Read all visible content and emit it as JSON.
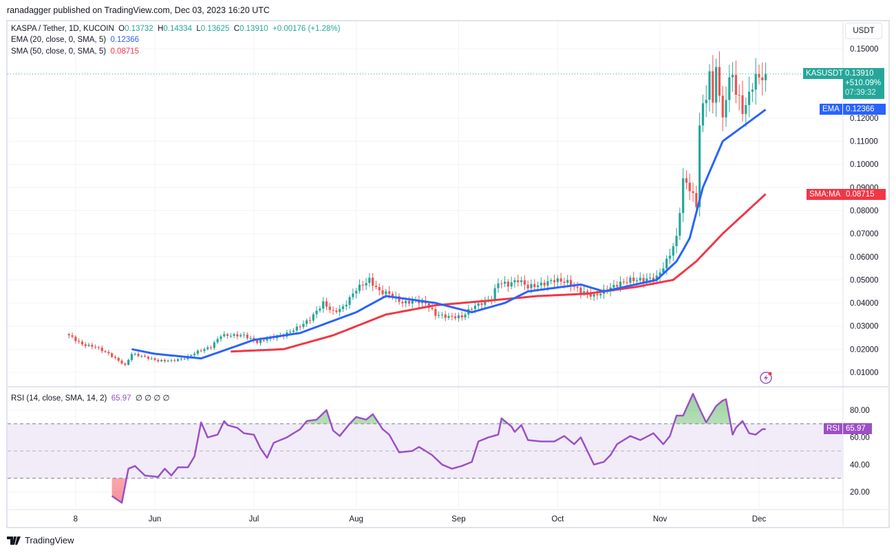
{
  "publisher": "ranadagger published on TradingView.com, Dec 03, 2023 16:20 UTC",
  "legend": {
    "symbol": "KASPA / Tether, 1D, KUCOIN",
    "o_label": "O",
    "o": "0.13732",
    "h_label": "H",
    "h": "0.14334",
    "l_label": "L",
    "l": "0.13625",
    "c_label": "C",
    "c": "0.13910",
    "change": "+0.00176 (+1.28%)",
    "ema_label": "EMA (20, close, 0, SMA, 5)",
    "ema_value": "0.12366",
    "sma_label": "SMA (50, close, 0, SMA, 5)",
    "sma_value": "0.08715",
    "rsi_label": "RSI (14, close, SMA, 14, 2)",
    "rsi_value": "65.97",
    "rsi_extra": "∅ ∅ ∅ ∅"
  },
  "currency_button": "USDT",
  "tags": {
    "symbol": "KASUSDT",
    "price": "0.13910",
    "change_pct": "+510.09%",
    "countdown": "07:39:32",
    "ema": "EMA",
    "ema_value": "0.12366",
    "sma": "SMA:MA",
    "sma_value": "0.08715",
    "rsi": "RSI",
    "rsi_value": "65.97"
  },
  "branding": "TradingView",
  "colors": {
    "up": "#26a69a",
    "down": "#ef5350",
    "ema": "#2962ff",
    "sma": "#f23645",
    "rsi": "#9c4fc7",
    "band": "#ede7f6"
  },
  "icons": {
    "lightning": "lightning-alert-icon",
    "logo": "tradingview-logo-icon"
  },
  "chart_data": [
    {
      "type": "candlestick",
      "price_ticks": [
        "0.15000",
        "0.12000",
        "0.11000",
        "0.10000",
        "0.09000",
        "0.08000",
        "0.07000",
        "0.06000",
        "0.05000",
        "0.04000",
        "0.03000",
        "0.02000",
        "0.01000"
      ],
      "ylim": [
        0.01,
        0.15
      ],
      "x_ticks": [
        [
          "2023-05-08",
          "8"
        ],
        [
          "2023-06-01",
          "Jun"
        ],
        [
          "2023-07-01",
          "Jul"
        ],
        [
          "2023-08-01",
          "Aug"
        ],
        [
          "2023-09-01",
          "Sep"
        ],
        [
          "2023-10-01",
          "Oct"
        ],
        [
          "2023-11-01",
          "Nov"
        ],
        [
          "2023-12-01",
          "Dec"
        ]
      ],
      "last_close": 0.1391,
      "close": [
        [
          "2023-05-06",
          0.026
        ],
        [
          "2023-05-10",
          0.022
        ],
        [
          "2023-05-14",
          0.021
        ],
        [
          "2023-05-18",
          0.018
        ],
        [
          "2023-05-21",
          0.015
        ],
        [
          "2023-05-23",
          0.013
        ],
        [
          "2023-05-25",
          0.018
        ],
        [
          "2023-05-28",
          0.017
        ],
        [
          "2023-06-02",
          0.015
        ],
        [
          "2023-06-06",
          0.015
        ],
        [
          "2023-06-10",
          0.016
        ],
        [
          "2023-06-14",
          0.019
        ],
        [
          "2023-06-18",
          0.021
        ],
        [
          "2023-06-21",
          0.026
        ],
        [
          "2023-06-24",
          0.026
        ],
        [
          "2023-06-28",
          0.026
        ],
        [
          "2023-07-02",
          0.023
        ],
        [
          "2023-07-06",
          0.025
        ],
        [
          "2023-07-10",
          0.026
        ],
        [
          "2023-07-15",
          0.03
        ],
        [
          "2023-07-18",
          0.033
        ],
        [
          "2023-07-22",
          0.04
        ],
        [
          "2023-07-25",
          0.036
        ],
        [
          "2023-07-28",
          0.038
        ],
        [
          "2023-08-01",
          0.046
        ],
        [
          "2023-08-05",
          0.05
        ],
        [
          "2023-08-08",
          0.045
        ],
        [
          "2023-08-11",
          0.044
        ],
        [
          "2023-08-15",
          0.04
        ],
        [
          "2023-08-19",
          0.041
        ],
        [
          "2023-08-22",
          0.04
        ],
        [
          "2023-08-25",
          0.035
        ],
        [
          "2023-08-29",
          0.034
        ],
        [
          "2023-09-02",
          0.034
        ],
        [
          "2023-09-05",
          0.038
        ],
        [
          "2023-09-08",
          0.04
        ],
        [
          "2023-09-11",
          0.042
        ],
        [
          "2023-09-13",
          0.049
        ],
        [
          "2023-09-16",
          0.048
        ],
        [
          "2023-09-19",
          0.05
        ],
        [
          "2023-09-22",
          0.047
        ],
        [
          "2023-09-26",
          0.048
        ],
        [
          "2023-09-30",
          0.05
        ],
        [
          "2023-10-04",
          0.049
        ],
        [
          "2023-10-08",
          0.045
        ],
        [
          "2023-10-12",
          0.043
        ],
        [
          "2023-10-15",
          0.045
        ],
        [
          "2023-10-19",
          0.048
        ],
        [
          "2023-10-23",
          0.05
        ],
        [
          "2023-10-27",
          0.05
        ],
        [
          "2023-10-31",
          0.051
        ],
        [
          "2023-11-03",
          0.058
        ],
        [
          "2023-11-06",
          0.068
        ],
        [
          "2023-11-08",
          0.093
        ],
        [
          "2023-11-10",
          0.09
        ],
        [
          "2023-11-12",
          0.082
        ],
        [
          "2023-11-13",
          0.118
        ],
        [
          "2023-11-15",
          0.13
        ],
        [
          "2023-11-16",
          0.14
        ],
        [
          "2023-11-17",
          0.125
        ],
        [
          "2023-11-18",
          0.145
        ],
        [
          "2023-11-19",
          0.128
        ],
        [
          "2023-11-20",
          0.12
        ],
        [
          "2023-11-21",
          0.13
        ],
        [
          "2023-11-23",
          0.14
        ],
        [
          "2023-11-24",
          0.131
        ],
        [
          "2023-11-26",
          0.124
        ],
        [
          "2023-11-27",
          0.125
        ],
        [
          "2023-11-29",
          0.135
        ],
        [
          "2023-11-30",
          0.137
        ],
        [
          "2023-12-03",
          0.1391
        ]
      ],
      "ema20": [
        [
          "2023-05-25",
          0.02
        ],
        [
          "2023-06-01",
          0.018
        ],
        [
          "2023-06-15",
          0.016
        ],
        [
          "2023-07-01",
          0.024
        ],
        [
          "2023-07-15",
          0.027
        ],
        [
          "2023-08-01",
          0.036
        ],
        [
          "2023-08-10",
          0.043
        ],
        [
          "2023-08-25",
          0.04
        ],
        [
          "2023-09-05",
          0.036
        ],
        [
          "2023-09-15",
          0.04
        ],
        [
          "2023-09-22",
          0.045
        ],
        [
          "2023-10-08",
          0.048
        ],
        [
          "2023-10-15",
          0.045
        ],
        [
          "2023-10-31",
          0.05
        ],
        [
          "2023-11-06",
          0.058
        ],
        [
          "2023-11-10",
          0.068
        ],
        [
          "2023-11-14",
          0.09
        ],
        [
          "2023-11-20",
          0.11
        ],
        [
          "2023-12-03",
          0.12366
        ]
      ],
      "sma50": [
        [
          "2023-06-24",
          0.019
        ],
        [
          "2023-07-10",
          0.02
        ],
        [
          "2023-07-25",
          0.026
        ],
        [
          "2023-08-10",
          0.035
        ],
        [
          "2023-08-25",
          0.039
        ],
        [
          "2023-09-10",
          0.041
        ],
        [
          "2023-09-25",
          0.043
        ],
        [
          "2023-10-10",
          0.044
        ],
        [
          "2023-10-25",
          0.047
        ],
        [
          "2023-11-05",
          0.05
        ],
        [
          "2023-11-12",
          0.058
        ],
        [
          "2023-11-20",
          0.07
        ],
        [
          "2023-12-03",
          0.08715
        ]
      ]
    },
    {
      "type": "line",
      "name": "RSI",
      "y_ticks": [
        "80.00",
        "60.00",
        "40.00",
        "20.00"
      ],
      "ylim": [
        5,
        98
      ],
      "bands": [
        30,
        50,
        70
      ],
      "values": [
        [
          "2023-05-19",
          17
        ],
        [
          "2023-05-22",
          12
        ],
        [
          "2023-05-24",
          37
        ],
        [
          "2023-05-26",
          39
        ],
        [
          "2023-05-29",
          32
        ],
        [
          "2023-06-02",
          31
        ],
        [
          "2023-06-04",
          37
        ],
        [
          "2023-06-06",
          32
        ],
        [
          "2023-06-08",
          38
        ],
        [
          "2023-06-11",
          38
        ],
        [
          "2023-06-13",
          46
        ],
        [
          "2023-06-15",
          71
        ],
        [
          "2023-06-17",
          60
        ],
        [
          "2023-06-20",
          62
        ],
        [
          "2023-06-22",
          72
        ],
        [
          "2023-06-23",
          69
        ],
        [
          "2023-06-26",
          67
        ],
        [
          "2023-06-28",
          63
        ],
        [
          "2023-07-01",
          62
        ],
        [
          "2023-07-03",
          52
        ],
        [
          "2023-07-05",
          45
        ],
        [
          "2023-07-07",
          56
        ],
        [
          "2023-07-11",
          60
        ],
        [
          "2023-07-15",
          66
        ],
        [
          "2023-07-17",
          72
        ],
        [
          "2023-07-20",
          73
        ],
        [
          "2023-07-23",
          80
        ],
        [
          "2023-07-25",
          65
        ],
        [
          "2023-07-27",
          61
        ],
        [
          "2023-07-30",
          70
        ],
        [
          "2023-08-01",
          75
        ],
        [
          "2023-08-04",
          73
        ],
        [
          "2023-08-06",
          77
        ],
        [
          "2023-08-09",
          66
        ],
        [
          "2023-08-11",
          62
        ],
        [
          "2023-08-14",
          49
        ],
        [
          "2023-08-18",
          50
        ],
        [
          "2023-08-20",
          53
        ],
        [
          "2023-08-24",
          47
        ],
        [
          "2023-08-27",
          40
        ],
        [
          "2023-08-30",
          37
        ],
        [
          "2023-09-02",
          39
        ],
        [
          "2023-09-05",
          42
        ],
        [
          "2023-09-07",
          57
        ],
        [
          "2023-09-10",
          60
        ],
        [
          "2023-09-13",
          62
        ],
        [
          "2023-09-14",
          74
        ],
        [
          "2023-09-17",
          68
        ],
        [
          "2023-09-18",
          64
        ],
        [
          "2023-09-20",
          69
        ],
        [
          "2023-09-22",
          58
        ],
        [
          "2023-09-26",
          57
        ],
        [
          "2023-09-30",
          57
        ],
        [
          "2023-10-03",
          61
        ],
        [
          "2023-10-06",
          55
        ],
        [
          "2023-10-08",
          60
        ],
        [
          "2023-10-12",
          40
        ],
        [
          "2023-10-15",
          42
        ],
        [
          "2023-10-17",
          47
        ],
        [
          "2023-10-19",
          55
        ],
        [
          "2023-10-23",
          61
        ],
        [
          "2023-10-26",
          58
        ],
        [
          "2023-10-30",
          63
        ],
        [
          "2023-11-02",
          55
        ],
        [
          "2023-11-04",
          61
        ],
        [
          "2023-11-06",
          76
        ],
        [
          "2023-11-08",
          76
        ],
        [
          "2023-11-11",
          92
        ],
        [
          "2023-11-13",
          81
        ],
        [
          "2023-11-15",
          71
        ],
        [
          "2023-11-16",
          75
        ],
        [
          "2023-11-18",
          83
        ],
        [
          "2023-11-20",
          87
        ],
        [
          "2023-11-21",
          88
        ],
        [
          "2023-11-23",
          62
        ],
        [
          "2023-11-24",
          67
        ],
        [
          "2023-11-26",
          72
        ],
        [
          "2023-11-28",
          63
        ],
        [
          "2023-11-30",
          62
        ],
        [
          "2023-12-02",
          66
        ],
        [
          "2023-12-03",
          65.97
        ]
      ]
    }
  ]
}
